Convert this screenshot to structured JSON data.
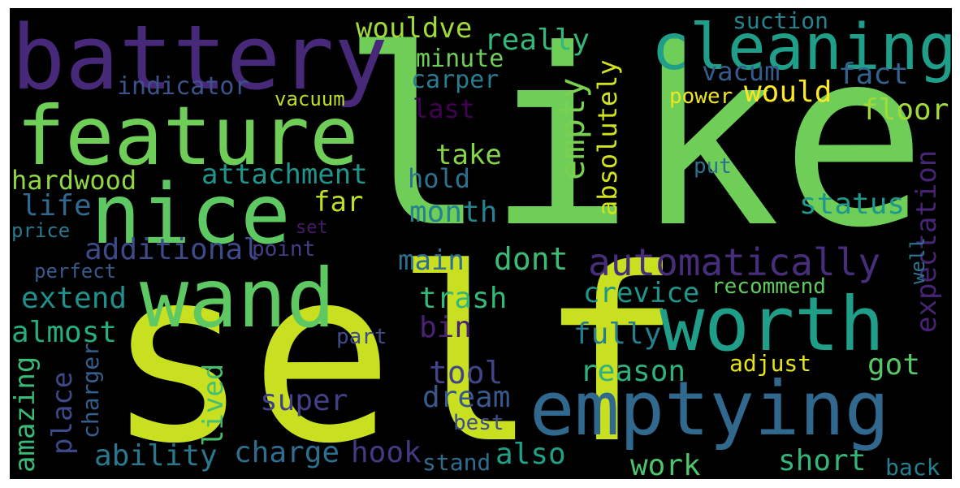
{
  "words": [
    {
      "text": "like",
      "color": "#6ece58"
    },
    {
      "text": "self",
      "color": "#c8e020"
    },
    {
      "text": "battery",
      "color": "#482878"
    },
    {
      "text": "feature",
      "color": "#6ece58"
    },
    {
      "text": "cleaning",
      "color": "#1f9e89"
    },
    {
      "text": "nice",
      "color": "#5ec962"
    },
    {
      "text": "wand",
      "color": "#5ec962"
    },
    {
      "text": "worth",
      "color": "#1f9e89"
    },
    {
      "text": "emptying",
      "color": "#31688e"
    },
    {
      "text": "automatically",
      "color": "#472d7b"
    },
    {
      "text": "empty",
      "color": "#7ad151"
    },
    {
      "text": "absolutely",
      "color": "#d2e21b"
    },
    {
      "text": "wouldve",
      "color": "#a0da39"
    },
    {
      "text": "really",
      "color": "#35b779"
    },
    {
      "text": "minute",
      "color": "#6ece58"
    },
    {
      "text": "carper",
      "color": "#287d8e"
    },
    {
      "text": "indicator",
      "color": "#3b528b"
    },
    {
      "text": "vacuum",
      "color": "#bddf26"
    },
    {
      "text": "last",
      "color": "#440154"
    },
    {
      "text": "take",
      "color": "#86d549"
    },
    {
      "text": "hold",
      "color": "#2c728e"
    },
    {
      "text": "attachment",
      "color": "#1f958b"
    },
    {
      "text": "hardwood",
      "color": "#90d743"
    },
    {
      "text": "far",
      "color": "#bddf26"
    },
    {
      "text": "month",
      "color": "#26828e"
    },
    {
      "text": "life",
      "color": "#31688e"
    },
    {
      "text": "set",
      "color": "#48186a"
    },
    {
      "text": "price",
      "color": "#2a788e"
    },
    {
      "text": "additional",
      "color": "#3e4a89"
    },
    {
      "text": "point",
      "color": "#433e85"
    },
    {
      "text": "perfect",
      "color": "#375a8c"
    },
    {
      "text": "main",
      "color": "#2e6f8e"
    },
    {
      "text": "dont",
      "color": "#3bbb75"
    },
    {
      "text": "extend",
      "color": "#21908d"
    },
    {
      "text": "trash",
      "color": "#35b779"
    },
    {
      "text": "crevice",
      "color": "#1f968b"
    },
    {
      "text": "almost",
      "color": "#26ad81"
    },
    {
      "text": "bin",
      "color": "#482173"
    },
    {
      "text": "fully",
      "color": "#277f8e"
    },
    {
      "text": "part",
      "color": "#3e4c8a"
    },
    {
      "text": "tool",
      "color": "#414487"
    },
    {
      "text": "reason",
      "color": "#2db27d"
    },
    {
      "text": "amazing",
      "color": "#3aba76"
    },
    {
      "text": "place",
      "color": "#3e4989"
    },
    {
      "text": "lived",
      "color": "#46c06f"
    },
    {
      "text": "super",
      "color": "#424086"
    },
    {
      "text": "dream",
      "color": "#38598c"
    },
    {
      "text": "charger",
      "color": "#355e8d"
    },
    {
      "text": "ability",
      "color": "#2a788e"
    },
    {
      "text": "charge",
      "color": "#2e6e8e"
    },
    {
      "text": "hook",
      "color": "#443a83"
    },
    {
      "text": "also",
      "color": "#1fa187"
    },
    {
      "text": "stand",
      "color": "#2f6c8e"
    },
    {
      "text": "best",
      "color": "#3d4d8a"
    },
    {
      "text": "work",
      "color": "#4ec36b"
    },
    {
      "text": "short",
      "color": "#33b67a"
    },
    {
      "text": "back",
      "color": "#277e8e"
    },
    {
      "text": "suction",
      "color": "#25838e"
    },
    {
      "text": "vacum",
      "color": "#365c8d"
    },
    {
      "text": "fact",
      "color": "#33638d"
    },
    {
      "text": "would",
      "color": "#fde725"
    },
    {
      "text": "power",
      "color": "#f1e51d"
    },
    {
      "text": "floor",
      "color": "#a2da37"
    },
    {
      "text": "put",
      "color": "#2d708e"
    },
    {
      "text": "status",
      "color": "#1f988b"
    },
    {
      "text": "expectation",
      "color": "#482475"
    },
    {
      "text": "well",
      "color": "#2a768e"
    },
    {
      "text": "recommend",
      "color": "#60ca60"
    },
    {
      "text": "got",
      "color": "#56c667"
    },
    {
      "text": "adjust",
      "color": "#e5e419"
    }
  ]
}
